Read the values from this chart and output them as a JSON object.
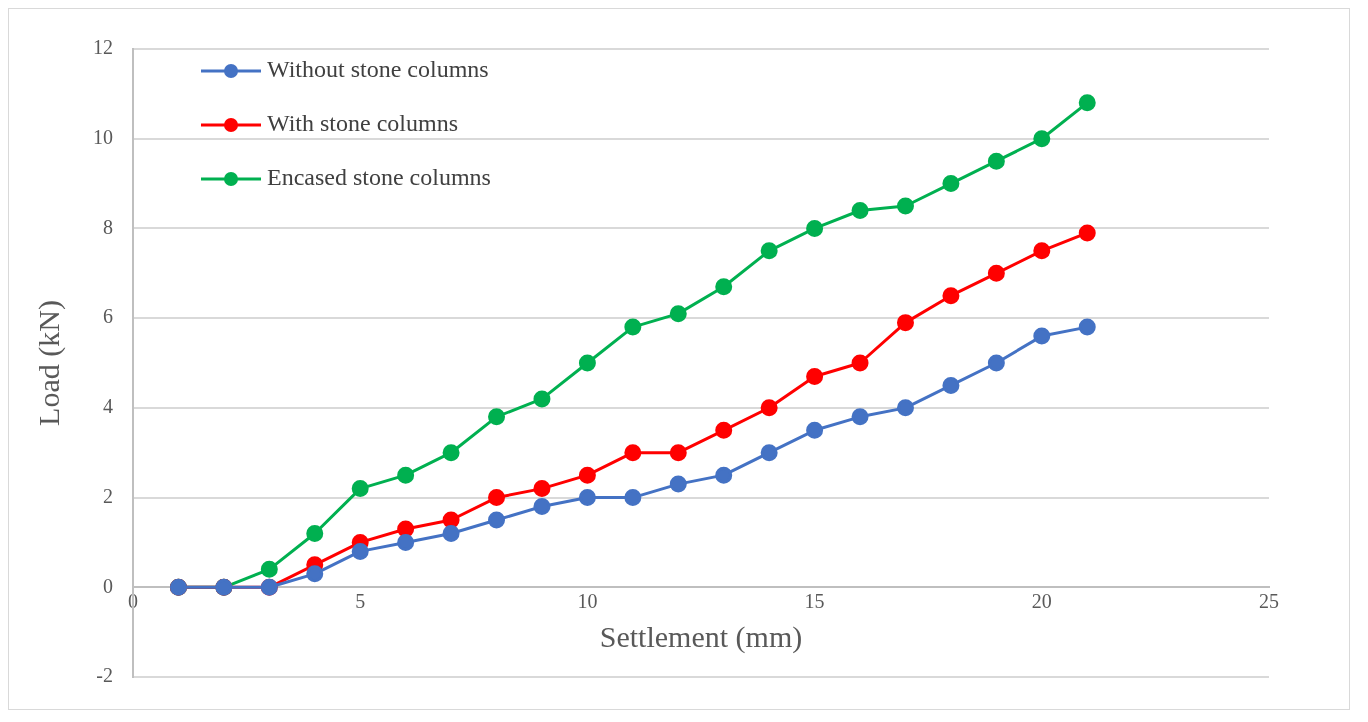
{
  "chart_data": {
    "type": "line",
    "xlabel": "Settlement (mm)",
    "ylabel": "Load (kN)",
    "x": [
      1,
      2,
      3,
      4,
      5,
      6,
      7,
      8,
      9,
      10,
      11,
      12,
      13,
      14,
      15,
      16,
      17,
      18,
      19,
      20,
      21
    ],
    "series": [
      {
        "name": "Without stone columns",
        "color": "#4472c4",
        "values": [
          0,
          0,
          0,
          0.3,
          0.8,
          1.0,
          1.2,
          1.5,
          1.8,
          2.0,
          2.0,
          2.3,
          2.5,
          3.0,
          3.5,
          3.8,
          4.0,
          4.5,
          5.0,
          5.6,
          5.8
        ]
      },
      {
        "name": "With stone columns",
        "color": "#ff0000",
        "values": [
          0,
          0,
          0,
          0.5,
          1.0,
          1.3,
          1.5,
          2.0,
          2.2,
          2.5,
          3.0,
          3.0,
          3.5,
          4.0,
          4.7,
          5.0,
          5.9,
          6.5,
          7.0,
          7.5,
          7.9
        ]
      },
      {
        "name": "Encased stone columns",
        "color": "#00b050",
        "values": [
          0,
          0,
          0.4,
          1.2,
          2.2,
          2.5,
          3.0,
          3.8,
          4.2,
          5.0,
          5.8,
          6.1,
          6.7,
          7.5,
          8.0,
          8.4,
          8.5,
          9.0,
          9.5,
          10.0,
          10.8
        ]
      }
    ],
    "xlim": [
      0,
      25
    ],
    "xticks": [
      0,
      5,
      10,
      15,
      20,
      25
    ],
    "ylim": [
      -2,
      12
    ],
    "yticks": [
      -2,
      0,
      2,
      4,
      6,
      8,
      10,
      12
    ],
    "grid": "y",
    "legend": "top left",
    "marker": "circle",
    "line_style": "solid"
  }
}
